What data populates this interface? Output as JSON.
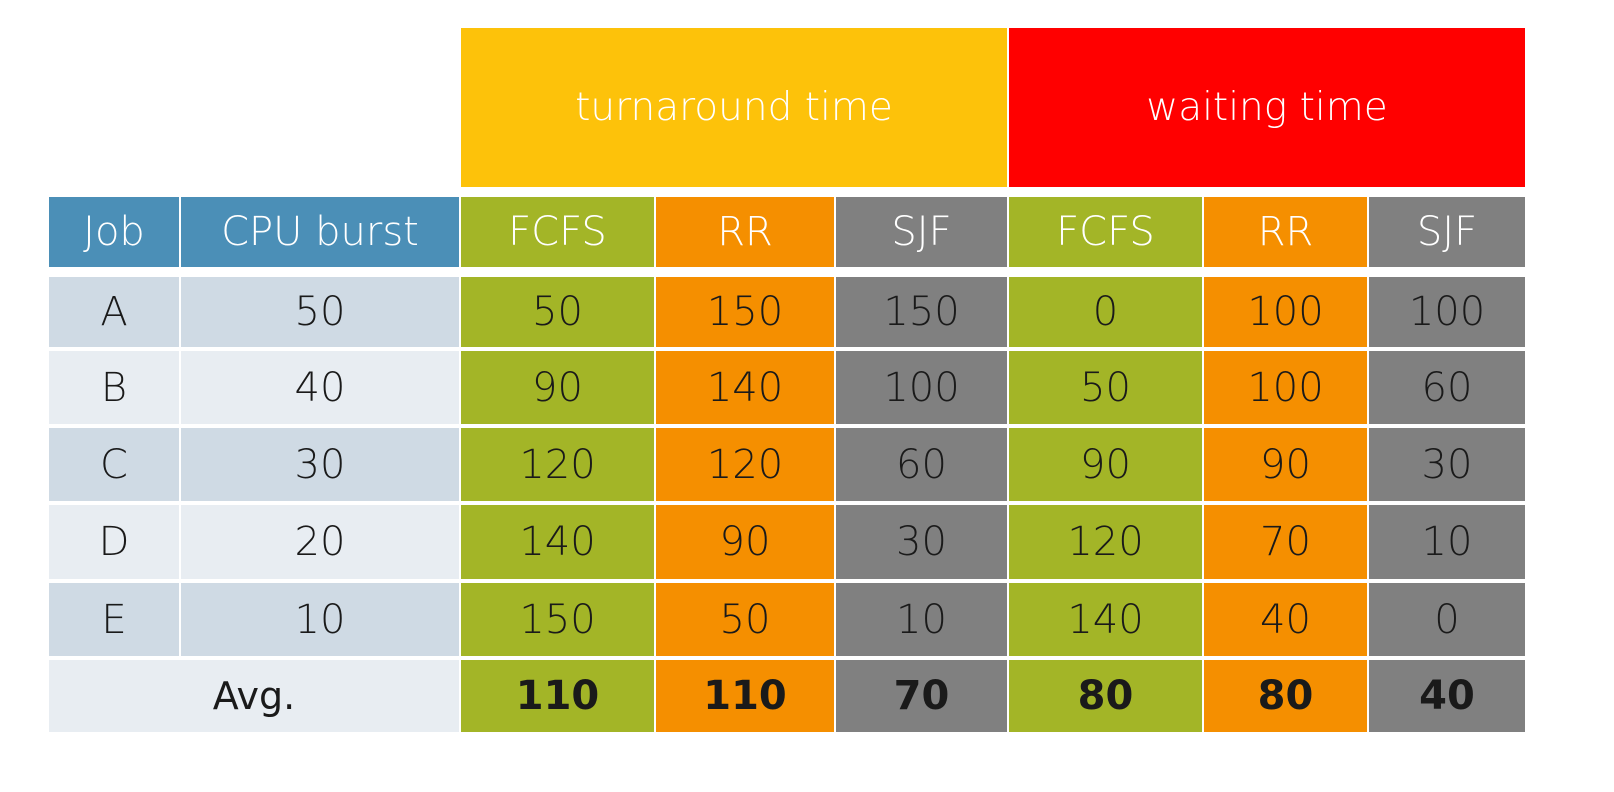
{
  "colors": {
    "turnaround_header": "#FDC20A",
    "waiting_header": "#FF0000",
    "job_header": "#4B8FB7",
    "fcfs": "#A3B527",
    "rr": "#F58F00",
    "sjf": "#808080",
    "row_dark": "#CFDAE4",
    "row_light": "#E8EDF2"
  },
  "groups": {
    "turnaround": "turnaround time",
    "waiting": "waiting time"
  },
  "headers": {
    "job": "Job",
    "cpu_burst": "CPU burst",
    "fcfs": "FCFS",
    "rr": "RR",
    "sjf": "SJF"
  },
  "rows": [
    {
      "job": "A",
      "burst": "50",
      "t_fcfs": "50",
      "t_rr": "150",
      "t_sjf": "150",
      "w_fcfs": "0",
      "w_rr": "100",
      "w_sjf": "100"
    },
    {
      "job": "B",
      "burst": "40",
      "t_fcfs": "90",
      "t_rr": "140",
      "t_sjf": "100",
      "w_fcfs": "50",
      "w_rr": "100",
      "w_sjf": "60"
    },
    {
      "job": "C",
      "burst": "30",
      "t_fcfs": "120",
      "t_rr": "120",
      "t_sjf": "60",
      "w_fcfs": "90",
      "w_rr": "90",
      "w_sjf": "30"
    },
    {
      "job": "D",
      "burst": "20",
      "t_fcfs": "140",
      "t_rr": "90",
      "t_sjf": "30",
      "w_fcfs": "120",
      "w_rr": "70",
      "w_sjf": "10"
    },
    {
      "job": "E",
      "burst": "10",
      "t_fcfs": "150",
      "t_rr": "50",
      "t_sjf": "10",
      "w_fcfs": "140",
      "w_rr": "40",
      "w_sjf": "0"
    }
  ],
  "avg": {
    "label": "Avg.",
    "t_fcfs": "110",
    "t_rr": "110",
    "t_sjf": "70",
    "w_fcfs": "80",
    "w_rr": "80",
    "w_sjf": "40"
  }
}
